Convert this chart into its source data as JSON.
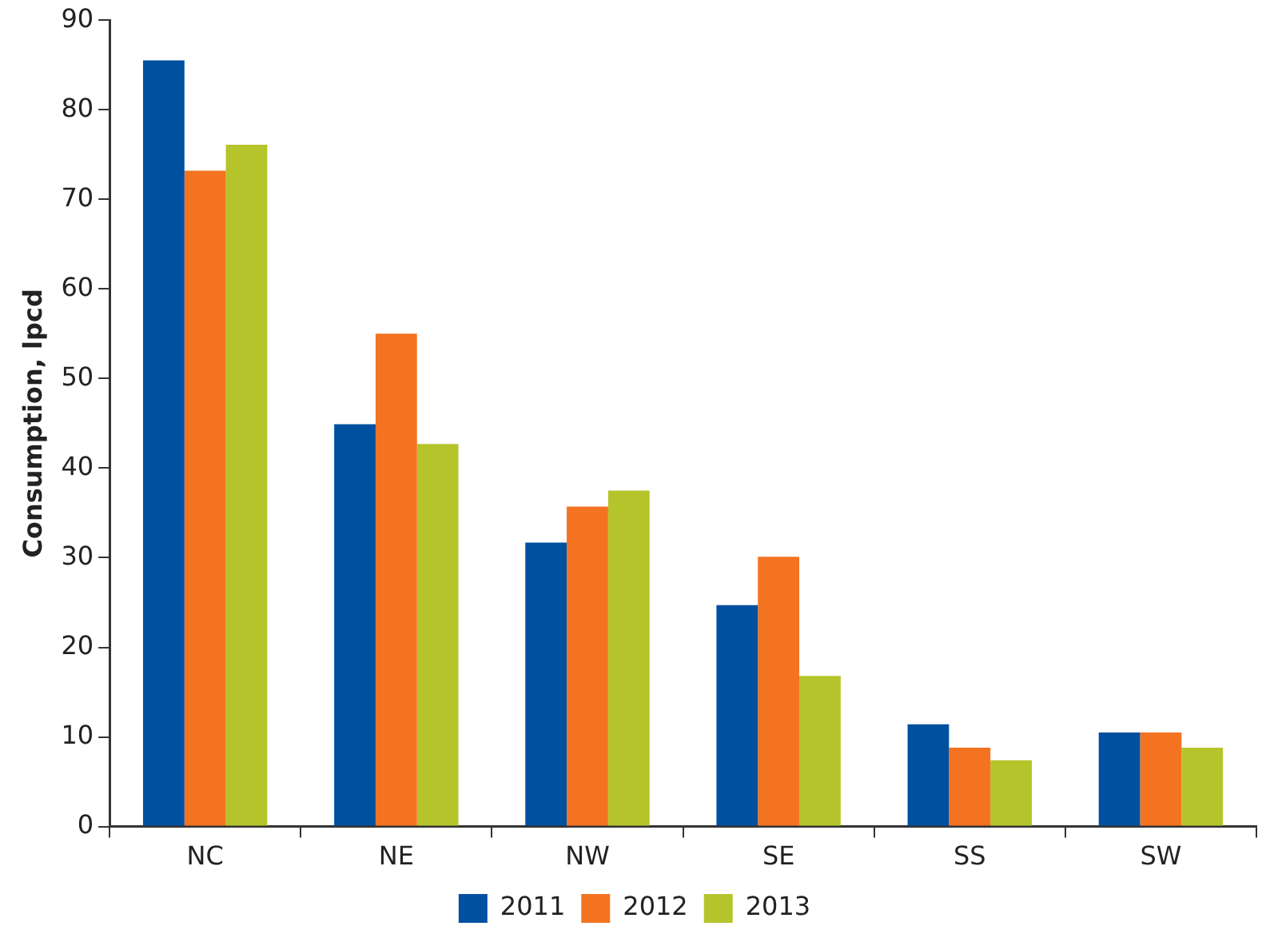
{
  "chart_data": {
    "type": "bar",
    "ylabel": "Consumption, lpcd",
    "categories": [
      "NC",
      "NE",
      "NW",
      "SE",
      "SS",
      "SW"
    ],
    "series": [
      {
        "name": "2011",
        "color": "#0050a0",
        "values": [
          85.5,
          44.9,
          31.7,
          24.7,
          11.4,
          10.5
        ]
      },
      {
        "name": "2012",
        "color": "#f47321",
        "values": [
          73.2,
          55.0,
          35.7,
          30.1,
          8.8,
          10.5
        ]
      },
      {
        "name": "2013",
        "color": "#b5c42a",
        "values": [
          76.1,
          42.7,
          37.5,
          16.8,
          7.4,
          8.8
        ]
      }
    ],
    "ylim": [
      0,
      90
    ],
    "yticks": [
      0,
      10,
      20,
      30,
      40,
      50,
      60,
      70,
      80,
      90
    ],
    "grid": false,
    "legend": "bottom"
  }
}
